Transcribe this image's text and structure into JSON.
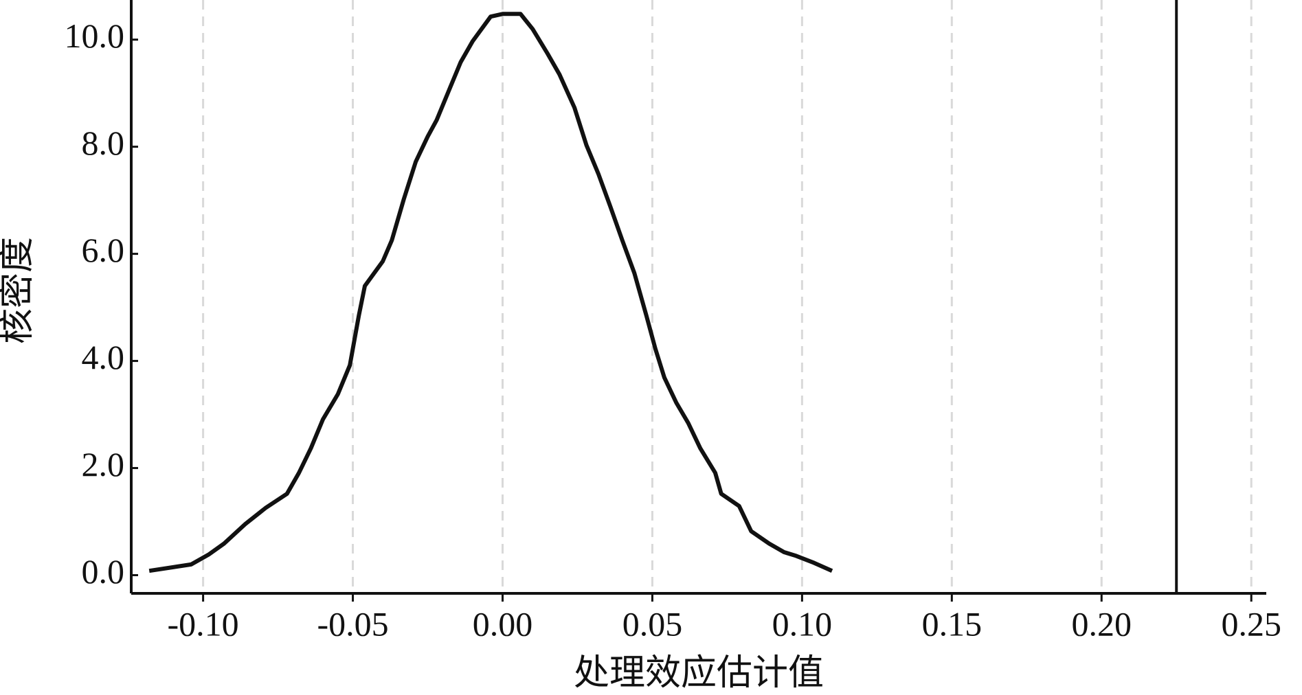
{
  "chart_data": {
    "type": "line",
    "x_label": "处理效应估计值",
    "y_label": "核密度",
    "x": [
      -0.118,
      -0.104,
      -0.098,
      -0.093,
      -0.086,
      -0.079,
      -0.072,
      -0.068,
      -0.064,
      -0.06,
      -0.055,
      -0.051,
      -0.048,
      -0.046,
      -0.04,
      -0.037,
      -0.033,
      -0.029,
      -0.025,
      -0.022,
      -0.018,
      -0.014,
      -0.01,
      -0.004,
      0.0,
      0.006,
      0.01,
      0.015,
      0.019,
      0.024,
      0.028,
      0.032,
      0.036,
      0.04,
      0.044,
      0.048,
      0.051,
      0.054,
      0.058,
      0.062,
      0.066,
      0.071,
      0.073,
      0.079,
      0.083,
      0.089,
      0.094,
      0.098,
      0.104,
      0.11
    ],
    "values": [
      0.08,
      0.2,
      0.39,
      0.59,
      0.95,
      1.26,
      1.52,
      1.91,
      2.37,
      2.91,
      3.38,
      3.92,
      4.85,
      5.4,
      5.86,
      6.25,
      7.02,
      7.72,
      8.19,
      8.5,
      9.04,
      9.58,
      9.97,
      10.43,
      10.48,
      10.48,
      10.2,
      9.74,
      9.35,
      8.73,
      8.03,
      7.49,
      6.88,
      6.25,
      5.64,
      4.85,
      4.23,
      3.69,
      3.22,
      2.84,
      2.37,
      1.91,
      1.52,
      1.29,
      0.82,
      0.59,
      0.43,
      0.36,
      0.23,
      0.08
    ],
    "color": "#111111",
    "reference_line": 0.225,
    "xlim": [
      -0.124,
      0.255
    ],
    "ylim": [
      -0.34,
      10.74
    ],
    "xticks": [
      {
        "value": -0.1,
        "label": "-0.10"
      },
      -0.05,
      {
        "value": 0,
        "label": "0.00"
      },
      0.05,
      {
        "value": 0.1,
        "label": "0.10"
      },
      0.15,
      {
        "value": 0.2,
        "label": "0.20"
      },
      0.25
    ],
    "yticks": [
      {
        "value": 0,
        "label": "0.0"
      },
      {
        "value": 2,
        "label": "2.0"
      },
      {
        "value": 4,
        "label": "4.0"
      },
      {
        "value": 6,
        "label": "6.0"
      },
      {
        "value": 8,
        "label": "8.0"
      },
      {
        "value": 10,
        "label": "10.0"
      }
    ],
    "grid": true
  }
}
